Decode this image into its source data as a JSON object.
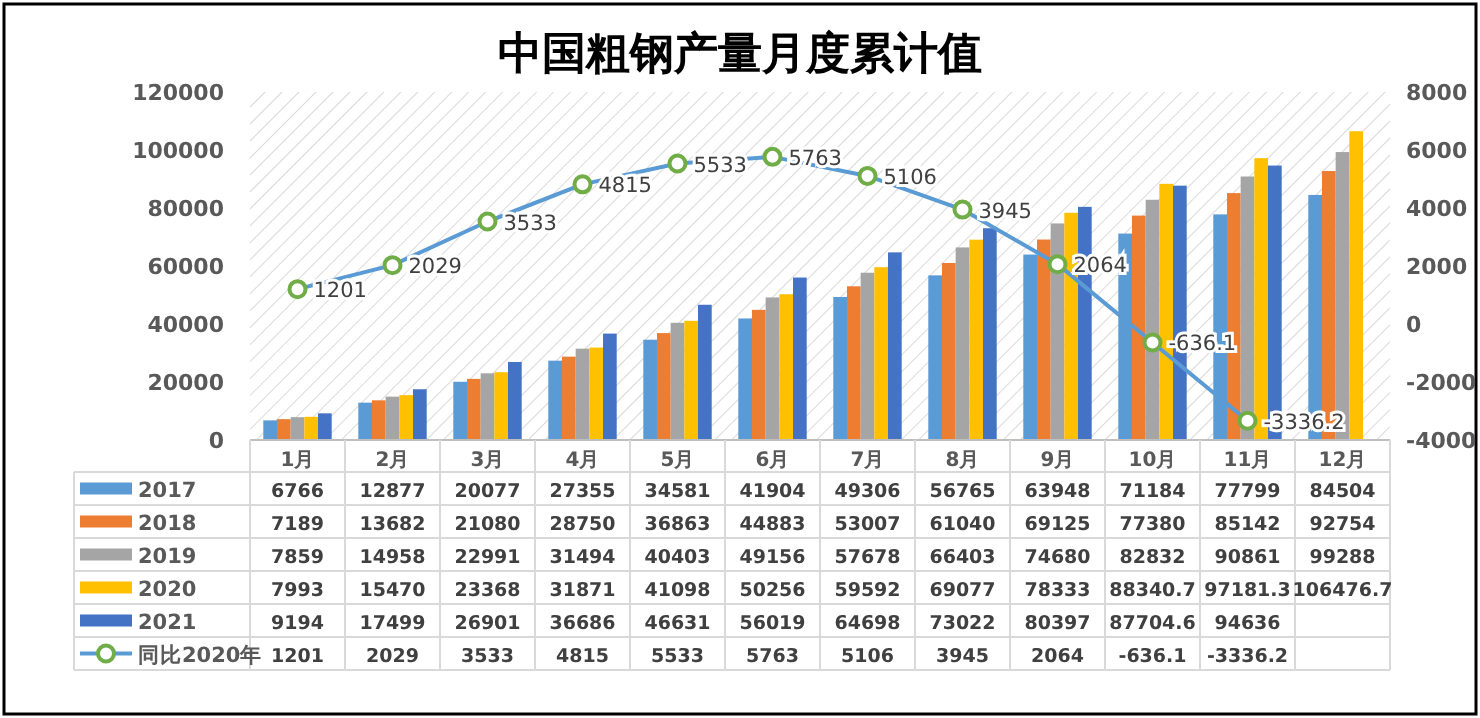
{
  "chart_data": {
    "type": "bar",
    "title": "中国粗钢产量月度累计值",
    "categories": [
      "1月",
      "2月",
      "3月",
      "4月",
      "5月",
      "6月",
      "7月",
      "8月",
      "9月",
      "10月",
      "11月",
      "12月"
    ],
    "series": [
      {
        "name": "2017",
        "color": "#5b9bd5",
        "values": [
          6766,
          12877,
          20077,
          27355,
          34581,
          41904,
          49306,
          56765,
          63948,
          71184,
          77799,
          84504
        ]
      },
      {
        "name": "2018",
        "color": "#ed7d31",
        "values": [
          7189,
          13682,
          21080,
          28750,
          36863,
          44883,
          53007,
          61040,
          69125,
          77380,
          85142,
          92754
        ]
      },
      {
        "name": "2019",
        "color": "#a5a5a5",
        "values": [
          7859,
          14958,
          22991,
          31494,
          40403,
          49156,
          57678,
          66403,
          74680,
          82832,
          90861,
          99288
        ]
      },
      {
        "name": "2020",
        "color": "#ffc000",
        "values": [
          7993,
          15470,
          23368,
          31871,
          41098,
          50256,
          59592,
          69077,
          78333,
          88340.7,
          97181.3,
          106476.7
        ]
      },
      {
        "name": "2021",
        "color": "#4472c4",
        "values": [
          9194,
          17499,
          26901,
          36686,
          46631,
          56019,
          64698,
          73022,
          80397,
          87704.6,
          94636,
          null
        ]
      },
      {
        "name": "同比2020年",
        "type": "line",
        "axis": "y2",
        "color": "#5b9bd5",
        "marker": "circle",
        "values": [
          1201,
          2029,
          3533,
          4815,
          5533,
          5763,
          5106,
          3945,
          2064,
          -636.1,
          -3336.2,
          null
        ]
      }
    ],
    "annotations": [
      "1201",
      "2029",
      "3533",
      "4815",
      "5533",
      "5763",
      "5106",
      "3945",
      "2064",
      "-636.1",
      "-3336.2"
    ],
    "ylim": [
      0,
      120000
    ],
    "yticks": [
      0,
      20000,
      40000,
      60000,
      80000,
      100000,
      120000
    ],
    "y2lim": [
      -4000,
      8000
    ],
    "y2ticks": [
      -4000,
      -2000,
      0,
      2000,
      4000,
      6000,
      8000
    ],
    "data_labels": true,
    "legend": "bottom",
    "grid": false
  }
}
